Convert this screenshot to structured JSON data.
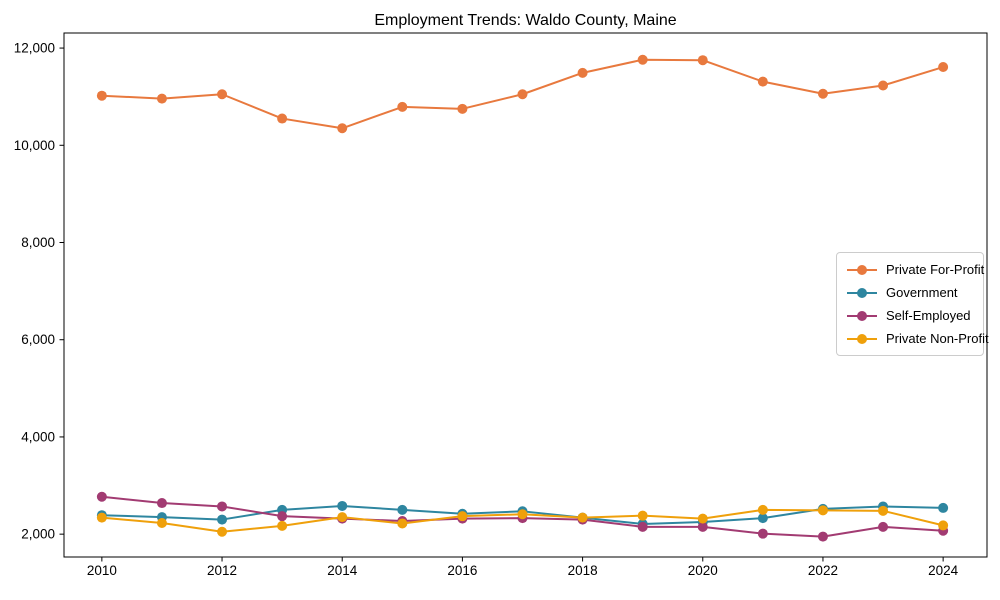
{
  "window": {
    "background": "#ffffff",
    "frame_color": "#000000",
    "tick_label_color": "#000000"
  },
  "chart_data": {
    "type": "line",
    "title": "Employment Trends: Waldo County, Maine",
    "xlabel": "",
    "ylabel": "",
    "grid": false,
    "legend_position": "center-right",
    "x": [
      2010,
      2011,
      2012,
      2013,
      2014,
      2015,
      2016,
      2017,
      2018,
      2019,
      2020,
      2021,
      2022,
      2023,
      2024
    ],
    "xticks": [
      2010,
      2012,
      2014,
      2016,
      2018,
      2020,
      2022,
      2024
    ],
    "yticks": [
      2000,
      4000,
      6000,
      8000,
      10000,
      12000
    ],
    "ytick_labels": [
      "2,000",
      "4,000",
      "6,000",
      "8,000",
      "10,000",
      "12,000"
    ],
    "xlim": [
      2009.37,
      2024.73
    ],
    "ylim": [
      1530,
      12310
    ],
    "series": [
      {
        "name": "Private For-Profit",
        "color": "#e8793e",
        "values": [
          11020,
          10960,
          11050,
          10550,
          10350,
          10790,
          10750,
          11050,
          11490,
          11760,
          11750,
          11310,
          11060,
          11230,
          11610
        ]
      },
      {
        "name": "Government",
        "color": "#2e86a0",
        "values": [
          2390,
          2350,
          2300,
          2500,
          2580,
          2500,
          2420,
          2470,
          2340,
          2210,
          2250,
          2330,
          2520,
          2570,
          2540
        ]
      },
      {
        "name": "Self-Employed",
        "color": "#a23b72",
        "values": [
          2770,
          2640,
          2570,
          2370,
          2320,
          2270,
          2320,
          2330,
          2300,
          2150,
          2150,
          2010,
          1950,
          2150,
          2070
        ]
      },
      {
        "name": "Private Non-Profit",
        "color": "#efa00b",
        "values": [
          2340,
          2230,
          2050,
          2170,
          2350,
          2220,
          2370,
          2410,
          2340,
          2380,
          2320,
          2500,
          2490,
          2480,
          2180
        ]
      }
    ]
  }
}
